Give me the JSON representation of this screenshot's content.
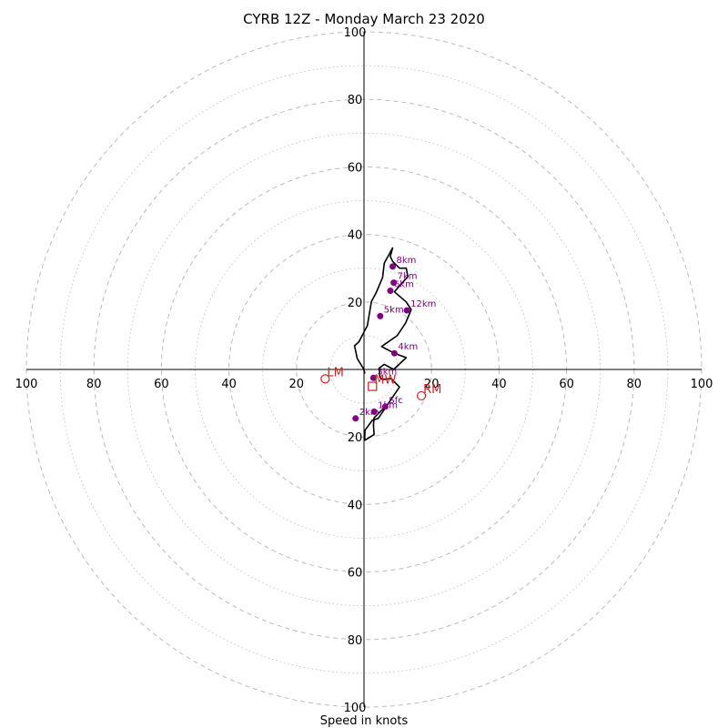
{
  "chart_data": {
    "type": "scatter",
    "title": "CYRB 12Z - Monday March 23 2020",
    "xlabel": "Speed in knots",
    "range": [
      -100,
      100
    ],
    "ring_labels": [
      "20",
      "40",
      "60",
      "80",
      "100"
    ],
    "x_ticks": [
      "100",
      "80",
      "60",
      "40",
      "20",
      "20",
      "40",
      "60",
      "80",
      "100"
    ],
    "y_ticks": [
      "100",
      "80",
      "60",
      "40",
      "20",
      "20",
      "40",
      "60",
      "80",
      "100"
    ],
    "grid": true,
    "colors": {
      "hodograph": "#000000",
      "heights": "#800080",
      "motion": "#cc2222",
      "grid": "#bbbbbb"
    },
    "hodograph": {
      "u": [
        6.3,
        3.0,
        2.8,
        3.0,
        0.2,
        0.3,
        2.5,
        4.2,
        10.5,
        8.0,
        5.5,
        4.7,
        4.5,
        6.0,
        8.8,
        12.5,
        9.0,
        5.2,
        9.8,
        12.3,
        14.0,
        12.5,
        9.0,
        11.0,
        13.0,
        12.5,
        10.5,
        8.5,
        7.8,
        8.5,
        6.0,
        5.5,
        3.5,
        2.2,
        1.0,
        -1.5,
        -2.8,
        -2.0,
        -0.2,
        0.3
      ],
      "v": [
        -11.0,
        -14.3,
        -16.5,
        -19.3,
        -21.0,
        -18.0,
        -15.0,
        -14.5,
        -5.2,
        -2.7,
        -3.0,
        -2.3,
        0.4,
        1.5,
        0.0,
        3.5,
        4.8,
        6.8,
        10.0,
        13.7,
        17.7,
        20.0,
        23.0,
        25.3,
        27.5,
        30.0,
        30.0,
        32.0,
        33.5,
        36.0,
        31.5,
        27.2,
        22.5,
        20.2,
        13.0,
        8.2,
        7.0,
        3.2,
        0.3,
        -1.2
      ]
    },
    "height_points": [
      {
        "label": "Sfc",
        "u": 6.3,
        "v": -11.0
      },
      {
        "label": "1km",
        "u": 3.0,
        "v": -12.5
      },
      {
        "label": "2km",
        "u": -2.5,
        "v": -14.5
      },
      {
        "label": "3km",
        "u": 2.8,
        "v": -2.5
      },
      {
        "label": "4km",
        "u": 9.0,
        "v": 4.8
      },
      {
        "label": "5km",
        "u": 4.8,
        "v": 15.8
      },
      {
        "label": "6km",
        "u": 7.8,
        "v": 23.3
      },
      {
        "label": "7km",
        "u": 8.8,
        "v": 25.7
      },
      {
        "label": "8km",
        "u": 8.5,
        "v": 30.5
      },
      {
        "label": "12km",
        "u": 12.7,
        "v": 17.5
      }
    ],
    "storm_motion": [
      {
        "label": "LM",
        "u": -11.5,
        "v": -2.8,
        "marker": "circle"
      },
      {
        "label": "RM",
        "u": 17.0,
        "v": -7.8,
        "marker": "circle"
      },
      {
        "label": "MW",
        "u": 2.5,
        "v": -5.0,
        "marker": "square"
      }
    ]
  }
}
